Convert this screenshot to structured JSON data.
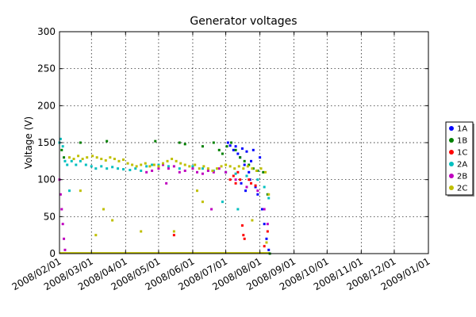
{
  "chart_data": {
    "type": "scatter",
    "title": "Generator voltages",
    "xlabel": "",
    "ylabel": "Voltage (V)",
    "x_axis_type": "date",
    "xlim": [
      "2008-02-01",
      "2009-01-01"
    ],
    "ylim": [
      0,
      300
    ],
    "y_ticks": [
      0,
      50,
      100,
      150,
      200,
      250,
      300
    ],
    "x_tick_labels": [
      "2008/02/01",
      "2008/03/01",
      "2008/04/01",
      "2008/05/01",
      "2008/06/01",
      "2008/07/01",
      "2008/08/01",
      "2008/09/01",
      "2008/10/01",
      "2008/11/01",
      "2008/12/01",
      "2009/01/01"
    ],
    "x_tick_dates": [
      "2008-02-01",
      "2008-03-01",
      "2008-04-01",
      "2008-05-01",
      "2008-06-01",
      "2008-07-01",
      "2008-08-01",
      "2008-09-01",
      "2008-10-01",
      "2008-11-01",
      "2008-12-01",
      "2009-01-01"
    ],
    "grid": true,
    "legend_position": "right",
    "series": [
      {
        "name": "1A",
        "color": "#0000ff",
        "points": [
          [
            "2008-07-03",
            150
          ],
          [
            "2008-07-05",
            146
          ],
          [
            "2008-07-08",
            140
          ],
          [
            "2008-07-10",
            145
          ],
          [
            "2008-07-12",
            135
          ],
          [
            "2008-07-14",
            130
          ],
          [
            "2008-07-16",
            142
          ],
          [
            "2008-07-18",
            120
          ],
          [
            "2008-07-20",
            138
          ],
          [
            "2008-07-22",
            110
          ],
          [
            "2008-07-24",
            125
          ],
          [
            "2008-07-26",
            140
          ],
          [
            "2008-07-28",
            90
          ],
          [
            "2008-07-30",
            80
          ],
          [
            "2008-08-01",
            130
          ],
          [
            "2008-08-03",
            60
          ],
          [
            "2008-08-05",
            40
          ],
          [
            "2008-08-07",
            20
          ],
          [
            "2008-08-09",
            5
          ],
          [
            "2008-07-15",
            95
          ],
          [
            "2008-07-19",
            85
          ],
          [
            "2008-07-23",
            100
          ]
        ]
      },
      {
        "name": "1B",
        "color": "#008000",
        "points": [
          [
            "2008-02-01",
            150
          ],
          [
            "2008-02-03",
            140
          ],
          [
            "2008-02-05",
            130
          ],
          [
            "2008-02-20",
            150
          ],
          [
            "2008-03-15",
            152
          ],
          [
            "2008-04-28",
            152
          ],
          [
            "2008-05-20",
            150
          ],
          [
            "2008-05-25",
            148
          ],
          [
            "2008-06-10",
            145
          ],
          [
            "2008-06-20",
            150
          ],
          [
            "2008-06-25",
            140
          ],
          [
            "2008-06-28",
            135
          ],
          [
            "2008-07-02",
            145
          ],
          [
            "2008-07-06",
            150
          ],
          [
            "2008-07-10",
            140
          ],
          [
            "2008-07-14",
            130
          ],
          [
            "2008-07-18",
            125
          ],
          [
            "2008-07-22",
            120
          ],
          [
            "2008-07-26",
            115
          ],
          [
            "2008-07-30",
            112
          ],
          [
            "2008-08-04",
            110
          ],
          [
            "2008-08-08",
            80
          ],
          [
            "2008-08-10",
            0
          ]
        ]
      },
      {
        "name": "1C",
        "color": "#ff0000",
        "points": [
          [
            "2008-07-05",
            100
          ],
          [
            "2008-07-08",
            105
          ],
          [
            "2008-07-10",
            95
          ],
          [
            "2008-07-12",
            110
          ],
          [
            "2008-07-14",
            100
          ],
          [
            "2008-07-16",
            38
          ],
          [
            "2008-07-17",
            25
          ],
          [
            "2008-07-18",
            20
          ],
          [
            "2008-07-20",
            105
          ],
          [
            "2008-07-22",
            100
          ],
          [
            "2008-07-24",
            95
          ],
          [
            "2008-07-28",
            92
          ],
          [
            "2008-08-05",
            10
          ],
          [
            "2008-08-08",
            30
          ],
          [
            "2008-05-15",
            25
          ]
        ]
      },
      {
        "name": "2A",
        "color": "#00bfbf",
        "points": [
          [
            "2008-02-01",
            150
          ],
          [
            "2008-02-02",
            155
          ],
          [
            "2008-02-04",
            145
          ],
          [
            "2008-02-06",
            125
          ],
          [
            "2008-02-08",
            120
          ],
          [
            "2008-02-12",
            125
          ],
          [
            "2008-02-16",
            120
          ],
          [
            "2008-02-20",
            125
          ],
          [
            "2008-02-25",
            120
          ],
          [
            "2008-03-01",
            118
          ],
          [
            "2008-03-05",
            115
          ],
          [
            "2008-03-10",
            118
          ],
          [
            "2008-03-15",
            115
          ],
          [
            "2008-03-20",
            117
          ],
          [
            "2008-03-25",
            115
          ],
          [
            "2008-03-30",
            114
          ],
          [
            "2008-04-05",
            113
          ],
          [
            "2008-04-10",
            115
          ],
          [
            "2008-04-15",
            112
          ],
          [
            "2008-04-20",
            118
          ],
          [
            "2008-04-25",
            120
          ],
          [
            "2008-05-01",
            120
          ],
          [
            "2008-05-10",
            118
          ],
          [
            "2008-05-20",
            115
          ],
          [
            "2008-06-01",
            118
          ],
          [
            "2008-06-10",
            115
          ],
          [
            "2008-06-20",
            112
          ],
          [
            "2008-07-01",
            110
          ],
          [
            "2008-07-10",
            108
          ],
          [
            "2008-07-20",
            105
          ],
          [
            "2008-07-30",
            100
          ],
          [
            "2008-08-05",
            90
          ],
          [
            "2008-08-09",
            75
          ],
          [
            "2008-06-28",
            70
          ],
          [
            "2008-07-12",
            60
          ],
          [
            "2008-02-10",
            85
          ]
        ]
      },
      {
        "name": "2B",
        "color": "#bf00bf",
        "points": [
          [
            "2008-02-01",
            100
          ],
          [
            "2008-02-02",
            80
          ],
          [
            "2008-02-03",
            60
          ],
          [
            "2008-02-04",
            40
          ],
          [
            "2008-02-05",
            20
          ],
          [
            "2008-02-06",
            5
          ],
          [
            "2008-04-20",
            110
          ],
          [
            "2008-04-25",
            112
          ],
          [
            "2008-05-01",
            115
          ],
          [
            "2008-05-05",
            120
          ],
          [
            "2008-05-10",
            115
          ],
          [
            "2008-05-15",
            118
          ],
          [
            "2008-05-20",
            110
          ],
          [
            "2008-05-25",
            112
          ],
          [
            "2008-06-01",
            115
          ],
          [
            "2008-06-05",
            110
          ],
          [
            "2008-06-10",
            108
          ],
          [
            "2008-06-15",
            112
          ],
          [
            "2008-06-20",
            110
          ],
          [
            "2008-06-25",
            115
          ],
          [
            "2008-07-01",
            110
          ],
          [
            "2008-07-10",
            100
          ],
          [
            "2008-07-20",
            90
          ],
          [
            "2008-07-30",
            85
          ],
          [
            "2008-08-05",
            60
          ],
          [
            "2008-08-08",
            40
          ],
          [
            "2008-05-08",
            95
          ],
          [
            "2008-06-18",
            60
          ]
        ]
      },
      {
        "name": "2C",
        "color": "#bfbf00",
        "points": [
          [
            "2008-02-10",
            130
          ],
          [
            "2008-02-14",
            128
          ],
          [
            "2008-02-18",
            132
          ],
          [
            "2008-02-22",
            128
          ],
          [
            "2008-02-26",
            130
          ],
          [
            "2008-03-02",
            132
          ],
          [
            "2008-03-06",
            130
          ],
          [
            "2008-03-10",
            128
          ],
          [
            "2008-03-14",
            126
          ],
          [
            "2008-03-18",
            130
          ],
          [
            "2008-03-22",
            128
          ],
          [
            "2008-03-26",
            125
          ],
          [
            "2008-03-30",
            127
          ],
          [
            "2008-04-03",
            122
          ],
          [
            "2008-04-07",
            120
          ],
          [
            "2008-04-11",
            118
          ],
          [
            "2008-04-15",
            120
          ],
          [
            "2008-04-19",
            122
          ],
          [
            "2008-04-23",
            118
          ],
          [
            "2008-04-27",
            120
          ],
          [
            "2008-05-01",
            118
          ],
          [
            "2008-05-05",
            122
          ],
          [
            "2008-05-09",
            125
          ],
          [
            "2008-05-13",
            128
          ],
          [
            "2008-05-17",
            125
          ],
          [
            "2008-05-21",
            122
          ],
          [
            "2008-05-25",
            120
          ],
          [
            "2008-05-29",
            118
          ],
          [
            "2008-06-03",
            120
          ],
          [
            "2008-06-07",
            115
          ],
          [
            "2008-06-11",
            118
          ],
          [
            "2008-06-15",
            115
          ],
          [
            "2008-06-19",
            112
          ],
          [
            "2008-06-23",
            115
          ],
          [
            "2008-06-27",
            118
          ],
          [
            "2008-07-01",
            120
          ],
          [
            "2008-07-05",
            118
          ],
          [
            "2008-07-09",
            115
          ],
          [
            "2008-07-13",
            118
          ],
          [
            "2008-07-17",
            115
          ],
          [
            "2008-07-21",
            118
          ],
          [
            "2008-07-25",
            115
          ],
          [
            "2008-07-29",
            112
          ],
          [
            "2008-08-02",
            115
          ],
          [
            "2008-08-06",
            110
          ],
          [
            "2008-08-09",
            80
          ],
          [
            "2008-03-05",
            25
          ],
          [
            "2008-03-20",
            45
          ],
          [
            "2008-04-15",
            30
          ],
          [
            "2008-05-15",
            30
          ],
          [
            "2008-06-05",
            85
          ],
          [
            "2008-06-10",
            70
          ],
          [
            "2008-07-25",
            45
          ],
          [
            "2008-08-07",
            15
          ],
          [
            "2008-02-20",
            85
          ],
          [
            "2008-03-12",
            60
          ]
        ]
      }
    ],
    "baseline": {
      "date_start": "2008-02-01",
      "date_end": "2008-08-10",
      "value": 1
    }
  }
}
